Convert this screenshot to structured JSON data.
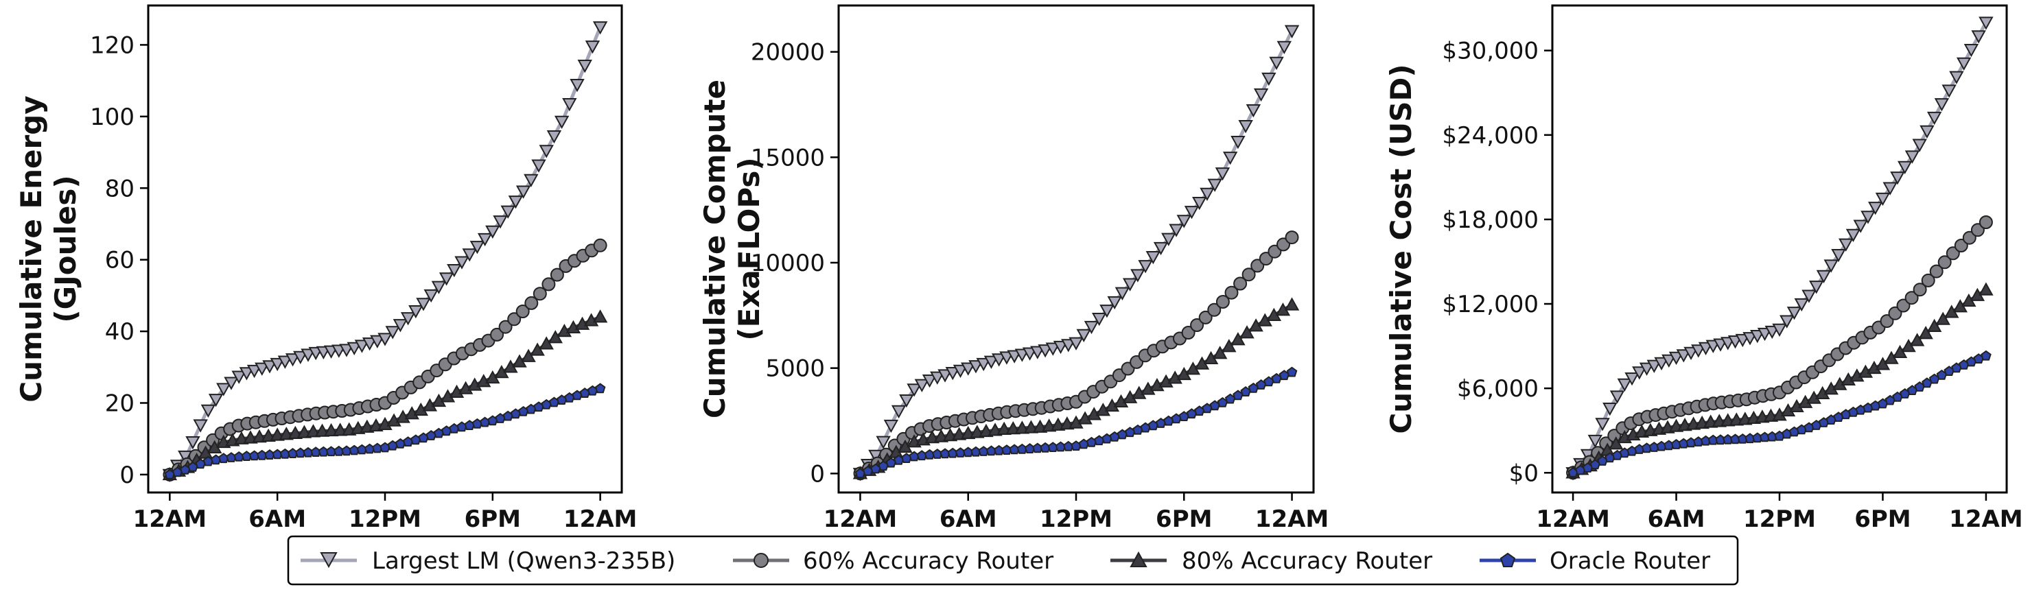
{
  "legend": [
    {
      "label": "Largest LM (Qwen3-235B)",
      "color": "#a5a5b8",
      "marker_fill": "#a9a9b9",
      "marker": "triangle-down"
    },
    {
      "label": "60% Accuracy Router",
      "color": "#707075",
      "marker_fill": "#808086",
      "marker": "circle"
    },
    {
      "label": "80% Accuracy Router",
      "color": "#3c3c42",
      "marker_fill": "#3a3a40",
      "marker": "triangle-up"
    },
    {
      "label": "Oracle Router",
      "color": "#2e43a8",
      "marker_fill": "#2e43a8",
      "marker": "pentagon"
    }
  ],
  "chart_data": [
    {
      "type": "line",
      "ylabel": [
        "Cumulative Energy",
        "(GJoules)"
      ],
      "xticks": [
        "12AM",
        "6AM",
        "12PM",
        "6PM",
        "12AM"
      ],
      "x_hours": [
        0,
        6,
        12,
        18,
        24
      ],
      "xlim": [
        -1.2,
        25.2
      ],
      "ylim": [
        -5,
        131
      ],
      "yticks": [
        0,
        20,
        40,
        60,
        80,
        100,
        120
      ],
      "yticklabels": [
        "0",
        "20",
        "40",
        "60",
        "80",
        "100",
        "120"
      ],
      "series": [
        {
          "name": "Largest LM (Qwen3-235B)",
          "x": [
            0,
            1,
            2,
            3,
            4,
            6,
            8,
            10,
            12,
            14,
            16,
            18,
            20,
            22,
            24
          ],
          "y": [
            0,
            6,
            17,
            24,
            28,
            31,
            34,
            35,
            38,
            47,
            58,
            68,
            81,
            100,
            125
          ]
        },
        {
          "name": "60% Accuracy Router",
          "x": [
            0,
            1,
            2,
            3,
            4,
            6,
            8,
            10,
            12,
            14,
            16,
            18,
            20,
            22,
            24
          ],
          "y": [
            0,
            3,
            8,
            12,
            14,
            15.5,
            17,
            18,
            20,
            26,
            33,
            38,
            47,
            58,
            64
          ]
        },
        {
          "name": "80% Accuracy Router",
          "x": [
            0,
            1,
            2,
            3,
            4,
            6,
            8,
            10,
            12,
            14,
            16,
            18,
            20,
            22,
            24
          ],
          "y": [
            0,
            2,
            6,
            9,
            10,
            11,
            12,
            12.5,
            14,
            18,
            23,
            27,
            33,
            40,
            44
          ]
        },
        {
          "name": "Oracle Router",
          "x": [
            0,
            1,
            2,
            3,
            4,
            6,
            8,
            10,
            12,
            14,
            16,
            18,
            20,
            22,
            24
          ],
          "y": [
            0,
            1.5,
            3.5,
            4.5,
            5,
            5.6,
            6.2,
            6.6,
            7.5,
            10,
            13,
            15,
            18,
            21,
            24
          ]
        }
      ]
    },
    {
      "type": "line",
      "ylabel": [
        "Cumulative Compute",
        "(ExaFLOPs)"
      ],
      "xticks": [
        "12AM",
        "6AM",
        "12PM",
        "6PM",
        "12AM"
      ],
      "x_hours": [
        0,
        6,
        12,
        18,
        24
      ],
      "xlim": [
        -1.2,
        25.2
      ],
      "ylim": [
        -900,
        22200
      ],
      "yticks": [
        0,
        5000,
        10000,
        15000,
        20000
      ],
      "yticklabels": [
        "0",
        "5000",
        "10000",
        "15000",
        "20000"
      ],
      "series": [
        {
          "name": "Largest LM (Qwen3-235B)",
          "x": [
            0,
            1,
            2,
            3,
            4,
            6,
            8,
            10,
            12,
            14,
            16,
            18,
            20,
            22,
            24
          ],
          "y": [
            0,
            1000,
            2800,
            4000,
            4500,
            5000,
            5500,
            5800,
            6200,
            8000,
            10000,
            12000,
            14000,
            17500,
            21000
          ]
        },
        {
          "name": "60% Accuracy Router",
          "x": [
            0,
            1,
            2,
            3,
            4,
            6,
            8,
            10,
            12,
            14,
            16,
            18,
            20,
            22,
            24
          ],
          "y": [
            0,
            500,
            1400,
            2000,
            2300,
            2600,
            2900,
            3100,
            3400,
            4400,
            5700,
            6500,
            8000,
            9800,
            11200
          ]
        },
        {
          "name": "80% Accuracy Router",
          "x": [
            0,
            1,
            2,
            3,
            4,
            6,
            8,
            10,
            12,
            14,
            16,
            18,
            20,
            22,
            24
          ],
          "y": [
            0,
            300,
            1000,
            1500,
            1700,
            1900,
            2100,
            2200,
            2400,
            3200,
            4000,
            4700,
            5700,
            7000,
            8000
          ]
        },
        {
          "name": "Oracle Router",
          "x": [
            0,
            1,
            2,
            3,
            4,
            6,
            8,
            10,
            12,
            14,
            16,
            18,
            20,
            22,
            24
          ],
          "y": [
            0,
            250,
            600,
            800,
            900,
            1000,
            1100,
            1200,
            1300,
            1700,
            2200,
            2700,
            3300,
            4100,
            4800
          ]
        }
      ]
    },
    {
      "type": "line",
      "ylabel": [
        "Cumulative Cost (USD)"
      ],
      "xticks": [
        "12AM",
        "6AM",
        "12PM",
        "6PM",
        "12AM"
      ],
      "x_hours": [
        0,
        6,
        12,
        18,
        24
      ],
      "xlim": [
        -1.2,
        25.2
      ],
      "ylim": [
        -1400,
        33200
      ],
      "yticks": [
        0,
        6000,
        12000,
        18000,
        24000,
        30000
      ],
      "yticklabels": [
        "$0",
        "$6,000",
        "$12,000",
        "$18,000",
        "$24,000",
        "$30,000"
      ],
      "series": [
        {
          "name": "Largest LM (Qwen3-235B)",
          "x": [
            0,
            1,
            2,
            3,
            4,
            6,
            8,
            10,
            12,
            14,
            16,
            18,
            20,
            22,
            24
          ],
          "y": [
            0,
            1500,
            4300,
            6300,
            7300,
            8200,
            9000,
            9500,
            10200,
            13000,
            16500,
            19500,
            23000,
            27500,
            32000
          ]
        },
        {
          "name": "60% Accuracy Router",
          "x": [
            0,
            1,
            2,
            3,
            4,
            6,
            8,
            10,
            12,
            14,
            16,
            18,
            20,
            22,
            24
          ],
          "y": [
            0,
            800,
            2200,
            3300,
            3900,
            4400,
            4900,
            5200,
            5700,
            7200,
            9000,
            10500,
            12800,
            15500,
            17800
          ]
        },
        {
          "name": "80% Accuracy Router",
          "x": [
            0,
            1,
            2,
            3,
            4,
            6,
            8,
            10,
            12,
            14,
            16,
            18,
            20,
            22,
            24
          ],
          "y": [
            0,
            500,
            1600,
            2500,
            2900,
            3300,
            3600,
            3800,
            4100,
            5300,
            6600,
            7700,
            9400,
            11400,
            13000
          ]
        },
        {
          "name": "Oracle Router",
          "x": [
            0,
            1,
            2,
            3,
            4,
            6,
            8,
            10,
            12,
            14,
            16,
            18,
            20,
            22,
            24
          ],
          "y": [
            0,
            400,
            1000,
            1400,
            1700,
            2000,
            2300,
            2400,
            2600,
            3300,
            4200,
            4900,
            6000,
            7300,
            8300
          ]
        }
      ]
    }
  ]
}
